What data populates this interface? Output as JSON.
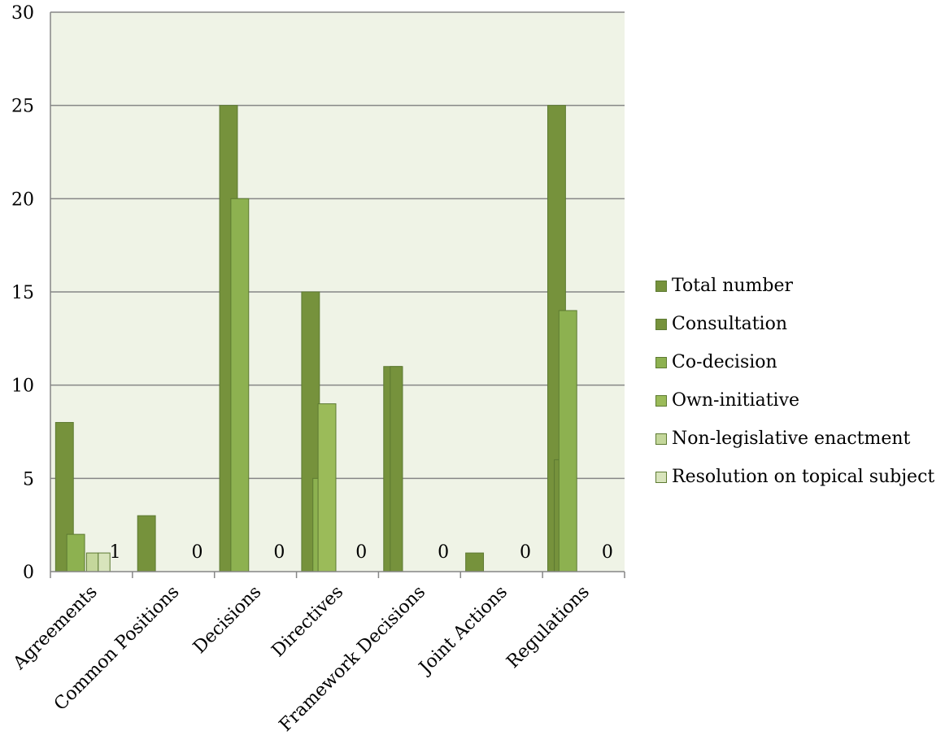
{
  "chart_data": {
    "type": "bar",
    "title": "",
    "xlabel": "",
    "ylabel": "",
    "ylim": [
      0,
      30
    ],
    "yticks": [
      0,
      5,
      10,
      15,
      20,
      25,
      30
    ],
    "grid": true,
    "legend_position": "right",
    "categories": [
      "Agreements",
      "Common Positions",
      "Decisions",
      "Directives",
      "Framework Decisions",
      "Joint Actions",
      "Regulations"
    ],
    "series": [
      {
        "name": "Total number",
        "color": "#76923c",
        "values": [
          8,
          3,
          25,
          15,
          11,
          1,
          25
        ]
      },
      {
        "name": "Consultation",
        "color": "#76923c",
        "values": [
          0,
          0,
          0,
          0,
          11,
          0,
          6
        ]
      },
      {
        "name": "Co-decision",
        "color": "#8db150",
        "values": [
          2,
          0,
          20,
          5,
          0,
          0,
          14
        ]
      },
      {
        "name": "Own-initiative",
        "color": "#9bbb59",
        "values": [
          0,
          0,
          0,
          9,
          0,
          0,
          0
        ]
      },
      {
        "name": "Non-legislative enactment",
        "color": "#c4d79b",
        "values": [
          1,
          0,
          0,
          0,
          0,
          0,
          0
        ]
      },
      {
        "name": "Resolution on topical subject",
        "color": "#d8e4bc",
        "values": [
          1,
          0,
          0,
          0,
          0,
          0,
          0
        ]
      }
    ],
    "data_labels": [
      {
        "category": "Agreements",
        "text": "1"
      },
      {
        "category": "Common Positions",
        "text": "0"
      },
      {
        "category": "Decisions",
        "text": "0"
      },
      {
        "category": "Directives",
        "text": "0"
      },
      {
        "category": "Framework Decisions",
        "text": "0"
      },
      {
        "category": "Joint Actions",
        "text": "0"
      },
      {
        "category": "Regulations",
        "text": "0"
      }
    ],
    "plot_background": "#eff3e6",
    "bar_border": "#5d7a32",
    "gridline_color": "#868686"
  }
}
